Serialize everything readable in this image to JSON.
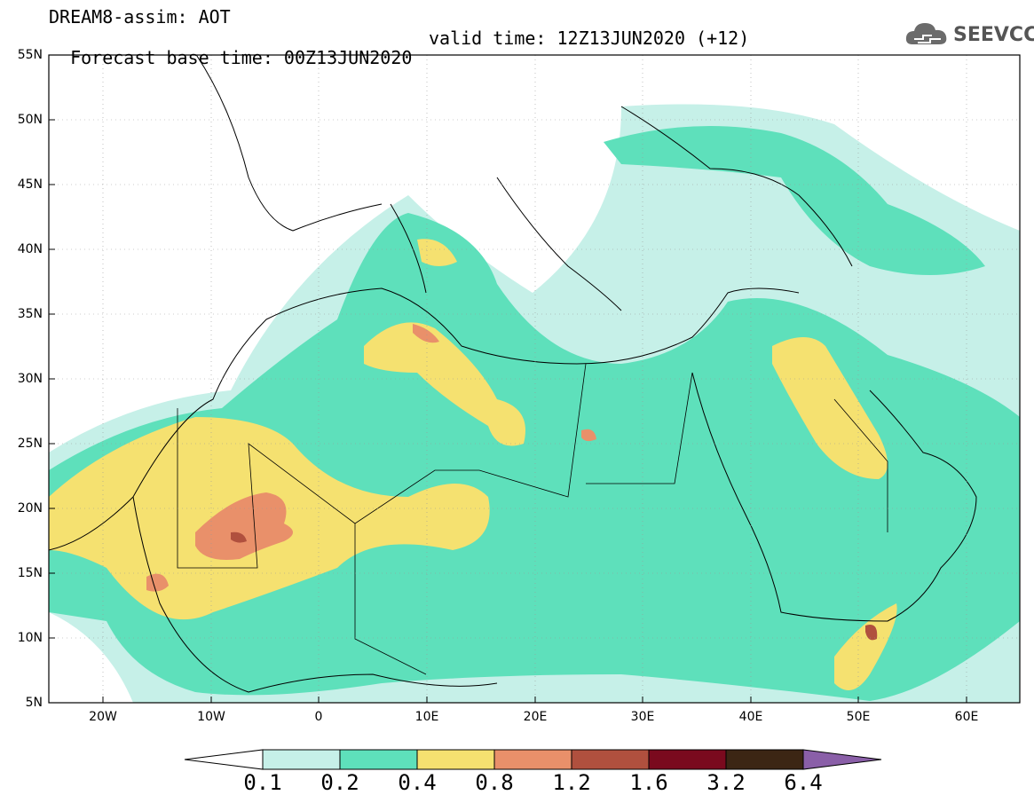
{
  "title": {
    "line1": "DREAM8-assim: AOT",
    "line2_base": "Forecast base time: 00Z13JUN2020",
    "line2_valid": "valid time: 12Z13JUN2020 (+12)"
  },
  "logo": {
    "icon": "cloud-icon",
    "text": "SEEVCCC"
  },
  "axes": {
    "lat_labels": [
      "55N",
      "50N",
      "45N",
      "40N",
      "35N",
      "30N",
      "25N",
      "20N",
      "15N",
      "10N",
      "5N"
    ],
    "lon_labels": [
      "20W",
      "10W",
      "0",
      "10E",
      "20E",
      "30E",
      "40E",
      "50E",
      "60E"
    ],
    "lat_range": [
      5,
      55
    ],
    "lon_range": [
      -25,
      65
    ]
  },
  "colorbar": {
    "labels": [
      "0.1",
      "0.2",
      "0.4",
      "0.8",
      "1.2",
      "1.6",
      "3.2",
      "6.4"
    ],
    "colors": [
      "#ffffff",
      "#c6f0e8",
      "#5ee0bb",
      "#f5e170",
      "#e9906a",
      "#b0503e",
      "#7a0a1e",
      "#3c2614",
      "#8a5fa8"
    ]
  }
}
